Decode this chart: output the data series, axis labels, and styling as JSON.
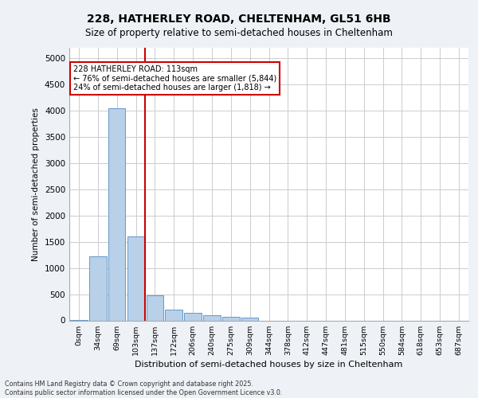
{
  "title_line1": "228, HATHERLEY ROAD, CHELTENHAM, GL51 6HB",
  "title_line2": "Size of property relative to semi-detached houses in Cheltenham",
  "xlabel": "Distribution of semi-detached houses by size in Cheltenham",
  "ylabel": "Number of semi-detached properties",
  "footnote": "Contains HM Land Registry data © Crown copyright and database right 2025.\nContains public sector information licensed under the Open Government Licence v3.0.",
  "bar_labels": [
    "0sqm",
    "34sqm",
    "69sqm",
    "103sqm",
    "137sqm",
    "172sqm",
    "206sqm",
    "240sqm",
    "275sqm",
    "309sqm",
    "344sqm",
    "378sqm",
    "412sqm",
    "447sqm",
    "481sqm",
    "515sqm",
    "550sqm",
    "584sqm",
    "618sqm",
    "653sqm",
    "687sqm"
  ],
  "bar_values": [
    5,
    1220,
    4050,
    1600,
    480,
    200,
    145,
    100,
    70,
    50,
    0,
    0,
    0,
    0,
    0,
    0,
    0,
    0,
    0,
    0,
    0
  ],
  "bar_color": "#b8d0e8",
  "bar_edge_color": "#6699cc",
  "property_bin_index": 3,
  "property_label": "228 HATHERLEY ROAD: 113sqm",
  "pct_smaller": 76,
  "pct_larger": 24,
  "n_smaller": 5844,
  "n_larger": 1818,
  "vline_color": "#cc0000",
  "annotation_box_color": "#cc0000",
  "ylim": [
    0,
    5200
  ],
  "background_color": "#eef2f7",
  "plot_bg_color": "#ffffff",
  "grid_color": "#cccccc"
}
